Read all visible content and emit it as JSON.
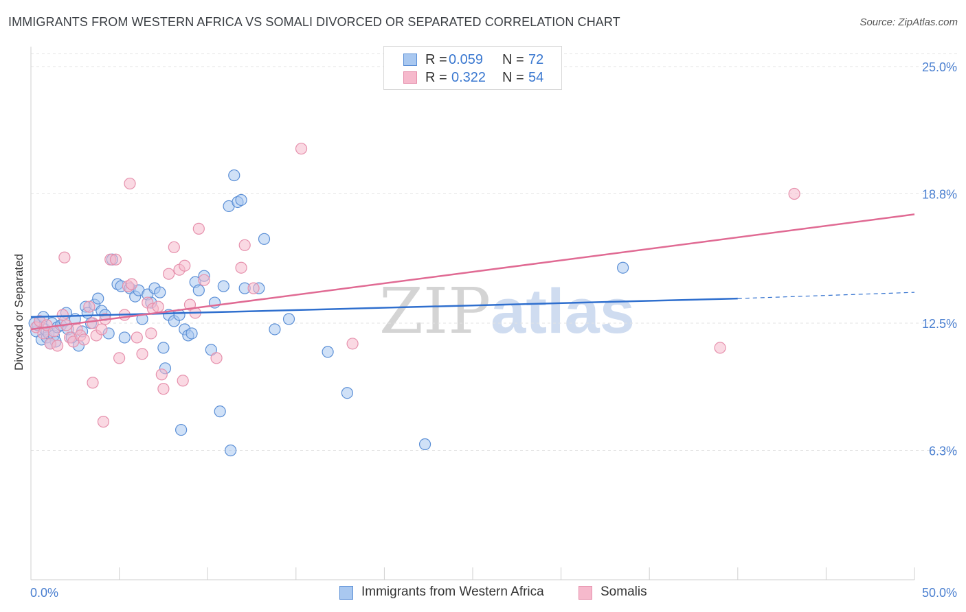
{
  "title": "IMMIGRANTS FROM WESTERN AFRICA VS SOMALI DIVORCED OR SEPARATED CORRELATION CHART",
  "source": "Source: ZipAtlas.com",
  "watermark": {
    "zip": "ZIP",
    "atlas": "atlas"
  },
  "legend_top": [
    {
      "r_label": "R =",
      "r_value": "0.059",
      "n_label": "N =",
      "n_value": "72"
    },
    {
      "r_label": "R =",
      "r_value": "0.322",
      "n_label": "N =",
      "n_value": "54"
    }
  ],
  "legend_bottom": [
    "Immigrants from Western Africa",
    "Somalis"
  ],
  "colors": {
    "blue_fill": "#a9c8f0",
    "blue_stroke": "#5b8fd6",
    "blue_line": "#2f6fce",
    "pink_fill": "#f6b9cc",
    "pink_stroke": "#e690ac",
    "pink_line": "#e06a93",
    "tick_text": "#4a7fd0",
    "grid": "#e3e3e3"
  },
  "chart_data": {
    "type": "scatter",
    "title": "IMMIGRANTS FROM WESTERN AFRICA VS SOMALI DIVORCED OR SEPARATED CORRELATION CHART",
    "xlabel": "",
    "ylabel": "Divorced or Separated",
    "x_unit": "%",
    "xlim": [
      0,
      50
    ],
    "ylim": [
      0,
      26
    ],
    "x_tick_labels": [
      {
        "value": 0,
        "label": "0.0%"
      },
      {
        "value": 50,
        "label": "50.0%"
      }
    ],
    "y_tick_labels": [
      {
        "value": 25.0,
        "label": "25.0%"
      },
      {
        "value": 18.8,
        "label": "18.8%"
      },
      {
        "value": 12.5,
        "label": "12.5%"
      },
      {
        "value": 6.3,
        "label": "6.3%"
      }
    ],
    "grid": true,
    "legend_position": "top-center",
    "series": [
      {
        "name": "Immigrants from Western Africa",
        "color": "#a9c8f0",
        "r": 0.059,
        "n": 72,
        "points": [
          [
            0.3,
            12.1
          ],
          [
            0.4,
            12.4
          ],
          [
            0.5,
            12.6
          ],
          [
            0.6,
            11.7
          ],
          [
            0.7,
            12.8
          ],
          [
            0.8,
            12.2
          ],
          [
            0.9,
            11.8
          ],
          [
            1.0,
            12.0
          ],
          [
            1.2,
            12.5
          ],
          [
            1.3,
            11.9
          ],
          [
            1.4,
            11.6
          ],
          [
            1.5,
            12.3
          ],
          [
            1.7,
            12.4
          ],
          [
            1.9,
            12.6
          ],
          [
            2.0,
            13.0
          ],
          [
            2.1,
            12.2
          ],
          [
            2.3,
            11.8
          ],
          [
            2.5,
            12.7
          ],
          [
            2.7,
            11.4
          ],
          [
            2.9,
            12.1
          ],
          [
            3.1,
            13.3
          ],
          [
            3.2,
            13.0
          ],
          [
            3.4,
            12.5
          ],
          [
            3.6,
            13.4
          ],
          [
            3.8,
            13.7
          ],
          [
            4.0,
            13.1
          ],
          [
            4.2,
            12.9
          ],
          [
            4.4,
            12.0
          ],
          [
            4.6,
            15.6
          ],
          [
            4.9,
            14.4
          ],
          [
            5.1,
            14.3
          ],
          [
            5.3,
            11.8
          ],
          [
            5.6,
            14.2
          ],
          [
            5.9,
            13.8
          ],
          [
            6.1,
            14.1
          ],
          [
            6.3,
            12.7
          ],
          [
            6.6,
            13.9
          ],
          [
            6.8,
            13.5
          ],
          [
            7.0,
            14.2
          ],
          [
            7.3,
            14.0
          ],
          [
            7.5,
            11.3
          ],
          [
            7.8,
            12.9
          ],
          [
            8.1,
            12.6
          ],
          [
            8.4,
            12.9
          ],
          [
            8.7,
            12.2
          ],
          [
            8.9,
            11.9
          ],
          [
            9.1,
            12.0
          ],
          [
            9.3,
            14.5
          ],
          [
            9.5,
            14.1
          ],
          [
            9.8,
            14.8
          ],
          [
            10.2,
            11.2
          ],
          [
            10.4,
            13.5
          ],
          [
            10.9,
            14.3
          ],
          [
            11.2,
            18.2
          ],
          [
            11.5,
            19.7
          ],
          [
            11.7,
            18.4
          ],
          [
            11.9,
            18.5
          ],
          [
            12.1,
            14.2
          ],
          [
            12.9,
            14.2
          ],
          [
            13.2,
            16.6
          ],
          [
            13.8,
            12.2
          ],
          [
            14.6,
            12.7
          ],
          [
            16.8,
            11.1
          ],
          [
            17.9,
            9.1
          ],
          [
            22.3,
            6.6
          ],
          [
            33.5,
            15.2
          ],
          [
            7.6,
            10.3
          ],
          [
            8.5,
            7.3
          ],
          [
            10.7,
            8.2
          ],
          [
            11.3,
            6.3
          ],
          [
            0.2,
            12.5
          ],
          [
            1.1,
            11.5
          ]
        ]
      },
      {
        "name": "Somalis",
        "color": "#f6b9cc",
        "r": 0.322,
        "n": 54,
        "points": [
          [
            0.3,
            12.3
          ],
          [
            0.5,
            12.6
          ],
          [
            0.7,
            12.0
          ],
          [
            0.9,
            12.4
          ],
          [
            1.1,
            11.5
          ],
          [
            1.3,
            12.1
          ],
          [
            1.5,
            11.4
          ],
          [
            1.8,
            12.9
          ],
          [
            2.0,
            12.4
          ],
          [
            2.2,
            11.8
          ],
          [
            2.4,
            11.6
          ],
          [
            2.6,
            12.2
          ],
          [
            2.8,
            11.9
          ],
          [
            3.0,
            11.7
          ],
          [
            3.3,
            13.3
          ],
          [
            3.5,
            12.5
          ],
          [
            3.7,
            11.9
          ],
          [
            4.0,
            12.2
          ],
          [
            4.2,
            12.7
          ],
          [
            4.5,
            15.6
          ],
          [
            4.8,
            15.6
          ],
          [
            5.0,
            10.8
          ],
          [
            5.3,
            12.9
          ],
          [
            5.5,
            14.3
          ],
          [
            5.7,
            14.4
          ],
          [
            6.0,
            11.8
          ],
          [
            6.3,
            11.0
          ],
          [
            6.6,
            13.5
          ],
          [
            6.9,
            13.2
          ],
          [
            7.2,
            13.3
          ],
          [
            7.5,
            9.3
          ],
          [
            7.8,
            14.9
          ],
          [
            8.1,
            16.2
          ],
          [
            8.4,
            15.1
          ],
          [
            8.7,
            15.3
          ],
          [
            9.0,
            13.4
          ],
          [
            9.3,
            13.0
          ],
          [
            9.5,
            17.1
          ],
          [
            9.8,
            14.6
          ],
          [
            10.5,
            10.8
          ],
          [
            11.9,
            15.2
          ],
          [
            12.1,
            16.3
          ],
          [
            12.6,
            14.2
          ],
          [
            15.3,
            21.0
          ],
          [
            18.2,
            11.5
          ],
          [
            3.5,
            9.6
          ],
          [
            4.1,
            7.7
          ],
          [
            5.6,
            19.3
          ],
          [
            6.8,
            12.0
          ],
          [
            7.4,
            10.0
          ],
          [
            8.6,
            9.7
          ],
          [
            1.9,
            15.7
          ],
          [
            39.0,
            11.3
          ],
          [
            43.2,
            18.8
          ]
        ]
      }
    ],
    "trend_lines": [
      {
        "series": "Immigrants from Western Africa",
        "x": [
          0,
          40
        ],
        "y": [
          12.8,
          13.7
        ],
        "dashed_extension": {
          "x": [
            40,
            50
          ],
          "y": [
            13.7,
            14.0
          ]
        }
      },
      {
        "series": "Somalis",
        "x": [
          0,
          50
        ],
        "y": [
          12.2,
          17.8
        ]
      }
    ]
  }
}
